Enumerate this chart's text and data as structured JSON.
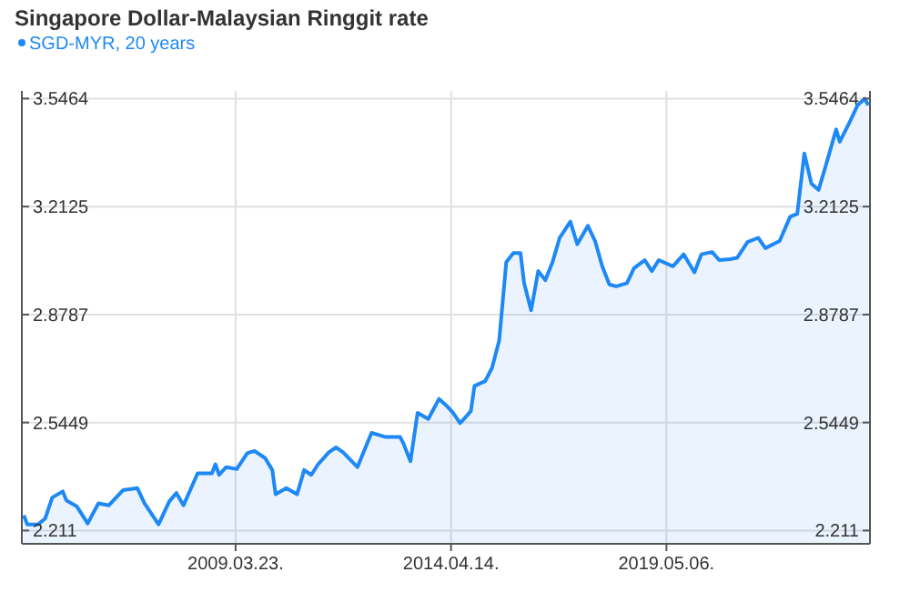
{
  "chart_data": {
    "type": "area",
    "title": "Singapore Dollar-Malaysian Ringgit rate",
    "x": [
      "2004-04",
      "2004-05",
      "2004-08",
      "2004-10",
      "2004-12",
      "2005-03",
      "2005-04",
      "2005-07",
      "2005-10",
      "2006-01",
      "2006-04",
      "2006-08",
      "2006-12",
      "2007-02",
      "2007-06",
      "2007-09",
      "2007-11",
      "2008-01",
      "2008-05",
      "2008-09",
      "2008-10",
      "2008-11",
      "2009-01",
      "2009-04",
      "2009-07",
      "2009-09",
      "2009-12",
      "2010-02",
      "2010-03",
      "2010-06",
      "2010-09",
      "2010-11",
      "2011-01",
      "2011-03",
      "2011-06",
      "2011-08",
      "2011-10",
      "2012-02",
      "2012-06",
      "2012-10",
      "2013-02",
      "2013-03",
      "2013-05",
      "2013-07",
      "2013-10",
      "2014-01",
      "2014-03",
      "2014-05",
      "2014-07",
      "2014-10",
      "2014-11",
      "2015-02",
      "2015-04",
      "2015-06",
      "2015-08",
      "2015-10",
      "2015-12",
      "2016-01",
      "2016-03",
      "2016-05",
      "2016-07",
      "2016-09",
      "2016-11",
      "2017-02",
      "2017-04",
      "2017-07",
      "2017-09",
      "2017-11",
      "2018-01",
      "2018-03",
      "2018-06",
      "2018-08",
      "2018-11",
      "2019-01",
      "2019-03",
      "2019-07",
      "2019-10",
      "2020-01",
      "2020-03",
      "2020-06",
      "2020-08",
      "2020-11",
      "2021-01",
      "2021-04",
      "2021-07",
      "2021-09",
      "2022-01",
      "2022-04",
      "2022-06",
      "2022-08",
      "2022-10",
      "2022-12",
      "2023-02",
      "2023-05",
      "2023-06",
      "2023-09",
      "2023-11",
      "2024-01",
      "2024-02"
    ],
    "series": [
      {
        "name": "SGD-MYR, 20 years",
        "color": "#1e88f5",
        "values": [
          2.258,
          2.23,
          2.23,
          2.248,
          2.313,
          2.332,
          2.304,
          2.285,
          2.233,
          2.295,
          2.289,
          2.336,
          2.342,
          2.295,
          2.23,
          2.301,
          2.327,
          2.289,
          2.388,
          2.388,
          2.416,
          2.383,
          2.407,
          2.401,
          2.45,
          2.457,
          2.435,
          2.398,
          2.323,
          2.342,
          2.323,
          2.398,
          2.383,
          2.416,
          2.453,
          2.468,
          2.453,
          2.407,
          2.513,
          2.5,
          2.5,
          2.481,
          2.425,
          2.575,
          2.556,
          2.618,
          2.599,
          2.575,
          2.543,
          2.58,
          2.658,
          2.673,
          2.714,
          2.798,
          3.041,
          3.069,
          3.069,
          2.976,
          2.892,
          3.013,
          2.985,
          3.041,
          3.116,
          3.166,
          3.096,
          3.153,
          3.106,
          3.028,
          2.972,
          2.966,
          2.976,
          3.022,
          3.047,
          3.013,
          3.047,
          3.028,
          3.065,
          3.009,
          3.065,
          3.072,
          3.047,
          3.05,
          3.054,
          3.103,
          3.116,
          3.084,
          3.106,
          3.181,
          3.19,
          3.377,
          3.283,
          3.264,
          3.339,
          3.451,
          3.413,
          3.479,
          3.526,
          3.546,
          3.526
        ]
      }
    ],
    "xlim": [
      "2004-03-15",
      "2024-02-15"
    ],
    "xticks": [
      {
        "value": "2009-03-23",
        "label": "2009.03.23."
      },
      {
        "value": "2014-04-14",
        "label": "2014.04.14."
      },
      {
        "value": "2019-05-06",
        "label": "2019.05.06."
      }
    ],
    "ylim": [
      2.17,
      3.57
    ],
    "yticks": [
      2.211,
      2.5449,
      2.8787,
      3.2125,
      3.5464
    ],
    "y2lim": [
      2.17,
      3.57
    ],
    "y2ticks": [
      2.211,
      2.5449,
      2.8787,
      3.2125,
      3.5464
    ],
    "grid": true,
    "legend": "top left"
  }
}
